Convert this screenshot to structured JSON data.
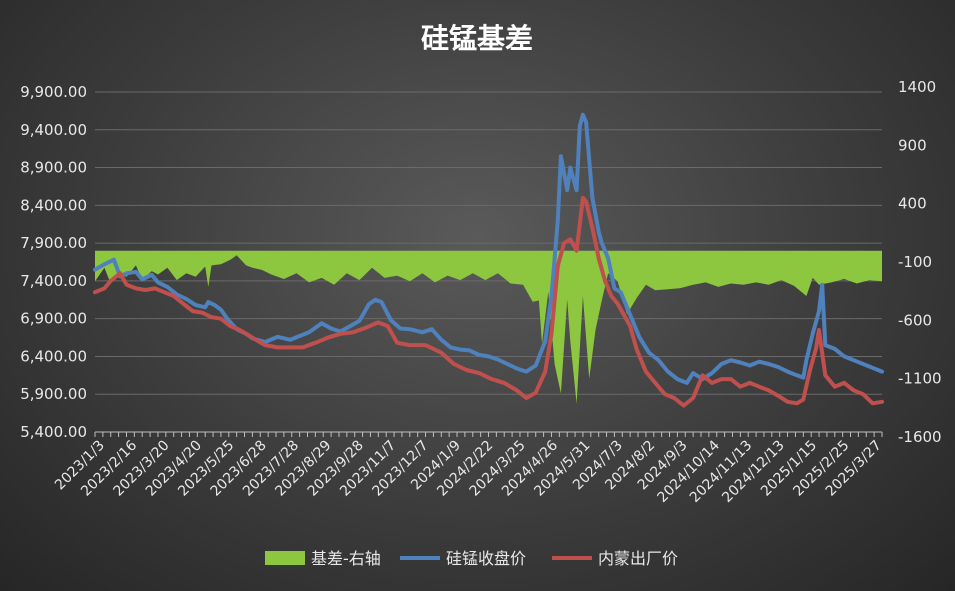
{
  "chart_data": {
    "type": "line",
    "title": "硅锰基差",
    "colors": {
      "basis": "#8dc63f",
      "close": "#4f81bd",
      "factory": "#c0504d"
    },
    "left_axis": {
      "min": 5400,
      "max": 9900,
      "ticks": [
        "9,900.00",
        "9,400.00",
        "8,900.00",
        "8,400.00",
        "7,900.00",
        "7,400.00",
        "6,900.00",
        "6,400.00",
        "5,900.00",
        "5,400.00"
      ]
    },
    "right_axis": {
      "min": -1600,
      "max": 1400,
      "ticks": [
        "1400",
        "900",
        "400",
        "-100",
        "-600",
        "-1100",
        "-1600"
      ]
    },
    "x_labels": [
      "2023/1/3",
      "2023/2/16",
      "2023/3/20",
      "2023/4/20",
      "2023/5/25",
      "2023/6/28",
      "2023/7/28",
      "2023/8/29",
      "2023/9/28",
      "2023/11/7",
      "2023/12/7",
      "2024/1/9",
      "2024/2/22",
      "2024/3/25",
      "2024/4/26",
      "2024/5/31",
      "2024/7/3",
      "2024/8/2",
      "2024/9/3",
      "2024/10/14",
      "2024/11/13",
      "2024/12/13",
      "2025/1/15",
      "2025/2/25",
      "2025/3/27"
    ],
    "x_span": 25,
    "series": [
      {
        "name": "基差-右轴",
        "axis": "right",
        "type": "area",
        "points": [
          [
            0,
            -270
          ],
          [
            0.3,
            -150
          ],
          [
            0.5,
            -290
          ],
          [
            0.8,
            -200
          ],
          [
            1.0,
            -230
          ],
          [
            1.3,
            -130
          ],
          [
            1.5,
            -260
          ],
          [
            1.8,
            -180
          ],
          [
            2.0,
            -210
          ],
          [
            2.3,
            -150
          ],
          [
            2.6,
            -260
          ],
          [
            2.9,
            -200
          ],
          [
            3.2,
            -230
          ],
          [
            3.5,
            -140
          ],
          [
            3.6,
            -320
          ],
          [
            3.7,
            -130
          ],
          [
            4.0,
            -120
          ],
          [
            4.3,
            -80
          ],
          [
            4.5,
            -40
          ],
          [
            4.6,
            -70
          ],
          [
            4.8,
            -130
          ],
          [
            5.0,
            -150
          ],
          [
            5.3,
            -170
          ],
          [
            5.6,
            -210
          ],
          [
            6.0,
            -250
          ],
          [
            6.4,
            -200
          ],
          [
            6.8,
            -280
          ],
          [
            7.2,
            -240
          ],
          [
            7.6,
            -300
          ],
          [
            8.0,
            -200
          ],
          [
            8.4,
            -260
          ],
          [
            8.8,
            -150
          ],
          [
            9.2,
            -240
          ],
          [
            9.6,
            -220
          ],
          [
            10.0,
            -270
          ],
          [
            10.4,
            -200
          ],
          [
            10.8,
            -280
          ],
          [
            11.2,
            -220
          ],
          [
            11.6,
            -260
          ],
          [
            12.0,
            -200
          ],
          [
            12.4,
            -260
          ],
          [
            12.8,
            -200
          ],
          [
            13.2,
            -290
          ],
          [
            13.6,
            -300
          ],
          [
            13.9,
            -450
          ],
          [
            14.1,
            -440
          ],
          [
            14.2,
            -820
          ],
          [
            14.4,
            -360
          ],
          [
            14.6,
            -1000
          ],
          [
            14.8,
            -1260
          ],
          [
            15.0,
            -430
          ],
          [
            15.1,
            -800
          ],
          [
            15.3,
            -1350
          ],
          [
            15.5,
            -400
          ],
          [
            15.7,
            -1130
          ],
          [
            15.9,
            -700
          ],
          [
            16.1,
            -440
          ],
          [
            16.3,
            -200
          ],
          [
            16.6,
            -270
          ],
          [
            16.9,
            -560
          ],
          [
            17.2,
            -420
          ],
          [
            17.5,
            -300
          ],
          [
            17.8,
            -350
          ],
          [
            18.2,
            -340
          ],
          [
            18.6,
            -330
          ],
          [
            19.0,
            -300
          ],
          [
            19.4,
            -280
          ],
          [
            19.8,
            -320
          ],
          [
            20.2,
            -290
          ],
          [
            20.6,
            -300
          ],
          [
            21.0,
            -280
          ],
          [
            21.4,
            -300
          ],
          [
            21.8,
            -260
          ],
          [
            22.2,
            -310
          ],
          [
            22.6,
            -400
          ],
          [
            22.8,
            -240
          ],
          [
            23.0,
            -300
          ],
          [
            23.4,
            -280
          ],
          [
            23.8,
            -250
          ],
          [
            24.2,
            -290
          ],
          [
            24.6,
            -260
          ],
          [
            25,
            -270
          ]
        ]
      },
      {
        "name": "硅锰收盘价",
        "axis": "left",
        "type": "line",
        "points": [
          [
            0,
            7550
          ],
          [
            0.3,
            7620
          ],
          [
            0.6,
            7680
          ],
          [
            0.8,
            7460
          ],
          [
            1.0,
            7500
          ],
          [
            1.3,
            7520
          ],
          [
            1.5,
            7420
          ],
          [
            1.8,
            7480
          ],
          [
            2.0,
            7380
          ],
          [
            2.3,
            7320
          ],
          [
            2.6,
            7220
          ],
          [
            2.9,
            7160
          ],
          [
            3.2,
            7080
          ],
          [
            3.5,
            7050
          ],
          [
            3.6,
            7120
          ],
          [
            3.8,
            7080
          ],
          [
            4.0,
            7020
          ],
          [
            4.2,
            6900
          ],
          [
            4.5,
            6760
          ],
          [
            4.8,
            6700
          ],
          [
            5.0,
            6640
          ],
          [
            5.4,
            6590
          ],
          [
            5.8,
            6660
          ],
          [
            6.2,
            6620
          ],
          [
            6.5,
            6670
          ],
          [
            6.8,
            6720
          ],
          [
            7.2,
            6840
          ],
          [
            7.5,
            6770
          ],
          [
            7.8,
            6730
          ],
          [
            8.1,
            6800
          ],
          [
            8.4,
            6870
          ],
          [
            8.7,
            7090
          ],
          [
            8.9,
            7150
          ],
          [
            9.1,
            7120
          ],
          [
            9.4,
            6880
          ],
          [
            9.7,
            6770
          ],
          [
            10.0,
            6760
          ],
          [
            10.4,
            6720
          ],
          [
            10.7,
            6760
          ],
          [
            11.0,
            6620
          ],
          [
            11.3,
            6520
          ],
          [
            11.6,
            6490
          ],
          [
            11.9,
            6480
          ],
          [
            12.2,
            6420
          ],
          [
            12.5,
            6400
          ],
          [
            12.8,
            6360
          ],
          [
            13.1,
            6300
          ],
          [
            13.4,
            6240
          ],
          [
            13.7,
            6200
          ],
          [
            14.0,
            6280
          ],
          [
            14.3,
            6600
          ],
          [
            14.5,
            7200
          ],
          [
            14.7,
            8200
          ],
          [
            14.8,
            9050
          ],
          [
            15.0,
            8600
          ],
          [
            15.1,
            8900
          ],
          [
            15.3,
            8600
          ],
          [
            15.4,
            9450
          ],
          [
            15.5,
            9600
          ],
          [
            15.6,
            9500
          ],
          [
            15.8,
            8500
          ],
          [
            16.0,
            8050
          ],
          [
            16.1,
            7900
          ],
          [
            16.3,
            7700
          ],
          [
            16.5,
            7300
          ],
          [
            16.7,
            7250
          ],
          [
            16.9,
            7050
          ],
          [
            17.1,
            6850
          ],
          [
            17.3,
            6650
          ],
          [
            17.6,
            6450
          ],
          [
            17.9,
            6350
          ],
          [
            18.2,
            6200
          ],
          [
            18.5,
            6100
          ],
          [
            18.8,
            6050
          ],
          [
            19.0,
            6180
          ],
          [
            19.3,
            6100
          ],
          [
            19.6,
            6180
          ],
          [
            19.9,
            6300
          ],
          [
            20.2,
            6350
          ],
          [
            20.5,
            6320
          ],
          [
            20.8,
            6280
          ],
          [
            21.1,
            6330
          ],
          [
            21.4,
            6300
          ],
          [
            21.7,
            6260
          ],
          [
            22.0,
            6200
          ],
          [
            22.3,
            6150
          ],
          [
            22.5,
            6120
          ],
          [
            22.6,
            6350
          ],
          [
            22.8,
            6700
          ],
          [
            23.0,
            7000
          ],
          [
            23.1,
            7350
          ],
          [
            23.2,
            6550
          ],
          [
            23.5,
            6500
          ],
          [
            23.8,
            6400
          ],
          [
            24.1,
            6350
          ],
          [
            24.4,
            6300
          ],
          [
            24.7,
            6250
          ],
          [
            25,
            6200
          ]
        ]
      },
      {
        "name": "内蒙出厂价",
        "axis": "left",
        "type": "line",
        "points": [
          [
            0,
            7250
          ],
          [
            0.3,
            7300
          ],
          [
            0.5,
            7400
          ],
          [
            0.8,
            7500
          ],
          [
            1.0,
            7350
          ],
          [
            1.3,
            7300
          ],
          [
            1.6,
            7280
          ],
          [
            1.9,
            7300
          ],
          [
            2.2,
            7250
          ],
          [
            2.5,
            7200
          ],
          [
            2.8,
            7100
          ],
          [
            3.1,
            7000
          ],
          [
            3.4,
            6980
          ],
          [
            3.7,
            6920
          ],
          [
            4.0,
            6900
          ],
          [
            4.3,
            6800
          ],
          [
            4.6,
            6750
          ],
          [
            5.0,
            6650
          ],
          [
            5.4,
            6550
          ],
          [
            5.8,
            6520
          ],
          [
            6.2,
            6520
          ],
          [
            6.6,
            6520
          ],
          [
            7.0,
            6580
          ],
          [
            7.4,
            6650
          ],
          [
            7.8,
            6700
          ],
          [
            8.2,
            6720
          ],
          [
            8.6,
            6780
          ],
          [
            9.0,
            6850
          ],
          [
            9.3,
            6800
          ],
          [
            9.6,
            6580
          ],
          [
            10.0,
            6550
          ],
          [
            10.5,
            6550
          ],
          [
            11.0,
            6450
          ],
          [
            11.4,
            6300
          ],
          [
            11.8,
            6220
          ],
          [
            12.2,
            6180
          ],
          [
            12.6,
            6100
          ],
          [
            13.0,
            6050
          ],
          [
            13.4,
            5950
          ],
          [
            13.7,
            5850
          ],
          [
            14.0,
            5920
          ],
          [
            14.3,
            6200
          ],
          [
            14.5,
            6700
          ],
          [
            14.7,
            7600
          ],
          [
            14.9,
            7900
          ],
          [
            15.1,
            7950
          ],
          [
            15.3,
            7800
          ],
          [
            15.5,
            8500
          ],
          [
            15.6,
            8450
          ],
          [
            15.8,
            8100
          ],
          [
            16.0,
            7700
          ],
          [
            16.2,
            7400
          ],
          [
            16.4,
            7200
          ],
          [
            16.6,
            7100
          ],
          [
            16.8,
            6950
          ],
          [
            17.0,
            6800
          ],
          [
            17.2,
            6500
          ],
          [
            17.5,
            6200
          ],
          [
            17.8,
            6050
          ],
          [
            18.1,
            5900
          ],
          [
            18.4,
            5850
          ],
          [
            18.7,
            5750
          ],
          [
            19.0,
            5850
          ],
          [
            19.3,
            6150
          ],
          [
            19.6,
            6050
          ],
          [
            19.9,
            6100
          ],
          [
            20.2,
            6100
          ],
          [
            20.5,
            6000
          ],
          [
            20.8,
            6050
          ],
          [
            21.1,
            6000
          ],
          [
            21.4,
            5950
          ],
          [
            21.7,
            5880
          ],
          [
            22.0,
            5800
          ],
          [
            22.3,
            5780
          ],
          [
            22.5,
            5830
          ],
          [
            22.7,
            6200
          ],
          [
            22.9,
            6500
          ],
          [
            23.0,
            6750
          ],
          [
            23.2,
            6150
          ],
          [
            23.5,
            6000
          ],
          [
            23.8,
            6050
          ],
          [
            24.1,
            5950
          ],
          [
            24.4,
            5900
          ],
          [
            24.7,
            5780
          ],
          [
            25,
            5800
          ]
        ]
      }
    ]
  }
}
